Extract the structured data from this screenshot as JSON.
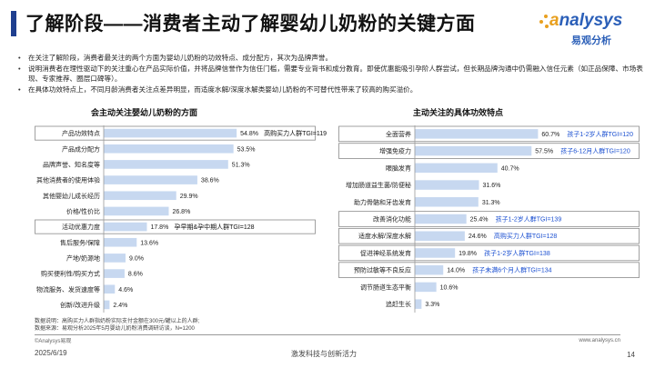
{
  "page": {
    "title": "了解阶段——消费者主动了解婴幼儿奶粉的关键方面",
    "logo_en": "nalysys",
    "logo_prefix": "a",
    "logo_cn": "易观分析",
    "bullets": [
      "在关注了解阶段，消费者最关注的两个方面为婴幼儿奶粉的功效特点、成分配方，其次为品牌声誉。",
      "说明消费者在理性驱动下的关注重心在产品实际价值，并将品牌信誉作为信任门槛，需要专业背书和成分教育。即使优惠能吸引孕阶人群尝试，但长期品牌沟通中仍需融入信任元素（如正品保障、市场表现、专家推荐、圈层口碑等）。",
      "在具体功效特点上，不同月龄消费者关注点差异明显，而适度水解/深度水解类婴幼儿奶粉的不可替代性带来了较高的购买溢价。"
    ],
    "left_title": "会主动关注婴幼儿奶粉的方面",
    "right_title": "主动关注的具体功效特点",
    "sources": [
      "数据说明：高购买力人群指奶粉实际支付金额在300元/罐以上的人群;",
      "数据来源：易观分析2025年5月婴幼儿奶粉消费调研访谈，N=1200"
    ],
    "copyright": "©Analysys易观",
    "website": "www.analysys.cn",
    "date": "2025/6/19",
    "slogan": "激发科技与创新活力",
    "page_number": "14"
  },
  "colors": {
    "title_bar": "#1f3f8f",
    "bar_left": "#c7d8f0",
    "bar_right": "#c7d8f0",
    "highlight_border": "#8a8a8a",
    "note_blue": "#1a4fd1"
  },
  "chart_data": [
    {
      "type": "bar",
      "orientation": "horizontal",
      "title": "会主动关注婴幼儿奶粉的方面",
      "categories": [
        "产品功效特点",
        "产品成分配方",
        "品牌声誉、知名度等",
        "其他消费者的使用体验",
        "其他婴幼儿成长经历",
        "价格/性价比",
        "活动优惠力度",
        "售后服务/保障",
        "产地/奶源地",
        "购买便利性/购买方式",
        "物流服务、发货速度等",
        "创新/改进升级"
      ],
      "values": [
        54.8,
        53.5,
        51.3,
        38.6,
        29.9,
        26.8,
        17.8,
        13.6,
        9.0,
        8.6,
        4.6,
        2.4
      ],
      "value_labels": [
        "54.8%",
        "53.5%",
        "51.3%",
        "38.6%",
        "29.9%",
        "26.8%",
        "17.8%",
        "13.6%",
        "9.0%",
        "8.6%",
        "4.6%",
        "2.4%"
      ],
      "xlim": [
        0,
        60
      ],
      "grid": false,
      "annotations": [
        {
          "category_index": 0,
          "text": "高购买力人群TGI=119",
          "color": "#111111"
        },
        {
          "category_index": 6,
          "text": "孕早期&孕中期人群TGI=128",
          "color": "#111111"
        }
      ]
    },
    {
      "type": "bar",
      "orientation": "horizontal",
      "title": "主动关注的具体功效特点",
      "categories": [
        "全面营养",
        "增强免疫力",
        "眼脑发育",
        "增加肠道益生菌/防便秘",
        "助力骨骼和牙齿发育",
        "改善消化功能",
        "适度水解/深度水解",
        "促进神经系统发育",
        "预防过敏等不良反应",
        "调节肠道生态平衡",
        "追赶生长"
      ],
      "values": [
        60.7,
        57.5,
        40.7,
        31.6,
        31.3,
        25.4,
        24.6,
        19.8,
        14.0,
        10.6,
        3.3
      ],
      "value_labels": [
        "60.7%",
        "57.5%",
        "40.7%",
        "31.6%",
        "31.3%",
        "25.4%",
        "24.6%",
        "19.8%",
        "14.0%",
        "10.6%",
        "3.3%"
      ],
      "xlim": [
        0,
        65
      ],
      "grid": false,
      "annotations": [
        {
          "category_index": 0,
          "text": "孩子1-2岁人群TGI=120",
          "color": "#1a4fd1"
        },
        {
          "category_index": 1,
          "text": "孩子6-12月人群TGI=120",
          "color": "#1a4fd1"
        },
        {
          "category_index": 5,
          "text": "孩子1-2岁人群TGI=139",
          "color": "#1a4fd1"
        },
        {
          "category_index": 6,
          "text": "高购买力人群TGI=128",
          "color": "#1a4fd1"
        },
        {
          "category_index": 7,
          "text": "孩子1-2岁人群TGI=138",
          "color": "#1a4fd1"
        },
        {
          "category_index": 8,
          "text": "孩子未满6个月人群TGI=134",
          "color": "#1a4fd1"
        }
      ]
    }
  ]
}
